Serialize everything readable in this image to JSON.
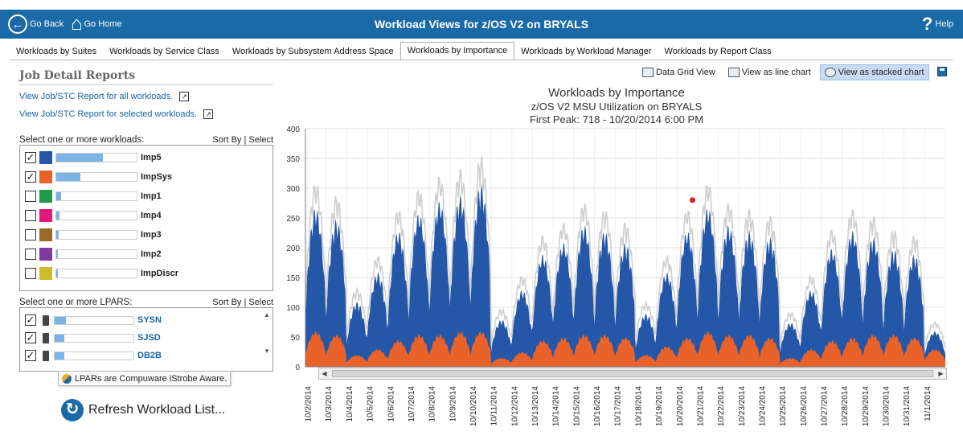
{
  "header": {
    "back_label": "Go Back",
    "home_label": "Go Home",
    "title": "Workload Views for z/OS V2 on BRYALS",
    "help_label": "Help"
  },
  "tabs": [
    {
      "label": "Workloads by Suites",
      "active": false
    },
    {
      "label": "Workloads by Service Class",
      "active": false
    },
    {
      "label": "Workloads by Subsystem Address Space",
      "active": false
    },
    {
      "label": "Workloads by Importance",
      "active": true
    },
    {
      "label": "Workloads by Workload Manager",
      "active": false
    },
    {
      "label": "Workloads by Report Class",
      "active": false
    }
  ],
  "left": {
    "title": "Job Detail Reports",
    "link_all": "View Job/STC Report for all workloads.",
    "link_selected": "View Job/STC Report for selected workloads.",
    "workloads_label": "Select one or more workloads:",
    "lpars_label": "Select one or more LPARS:",
    "sort_by": "Sort By",
    "select": "Select",
    "workloads": [
      {
        "name": "Imp5",
        "checked": true,
        "color": "#2457a8",
        "level": 0.58
      },
      {
        "name": "ImpSys",
        "checked": true,
        "color": "#e8622a",
        "level": 0.3
      },
      {
        "name": "Imp1",
        "checked": false,
        "color": "#1f9a4b",
        "level": 0.06
      },
      {
        "name": "Imp4",
        "checked": false,
        "color": "#e4197c",
        "level": 0.04
      },
      {
        "name": "Imp3",
        "checked": false,
        "color": "#9a6a2a",
        "level": 0.03
      },
      {
        "name": "Imp2",
        "checked": false,
        "color": "#7f3aa0",
        "level": 0.02
      },
      {
        "name": "ImpDiscr",
        "checked": false,
        "color": "#cdbb2d",
        "level": 0.02
      }
    ],
    "lpars": [
      {
        "name": "SYSN",
        "checked": true,
        "level": 0.14
      },
      {
        "name": "SJSD",
        "checked": true,
        "level": 0.12
      },
      {
        "name": "DB2B",
        "checked": true,
        "level": 0.12
      }
    ],
    "tooltip": "LPARs are Compuware iStrobe Aware.",
    "refresh_label": "Refresh Workload List..."
  },
  "toolbar": {
    "grid_label": "Data Grid View",
    "line_label": "View as line chart",
    "stacked_label": "View as stacked chart"
  },
  "chart_data": {
    "type": "area",
    "title": "Workloads by Importance",
    "subtitle": "z/OS V2 MSU Utilization on BRYALS",
    "peak_note": "First Peak: 718 - 10/20/2014 6:00 PM",
    "ylim": [
      0,
      400
    ],
    "yticks": [
      0,
      50,
      100,
      150,
      200,
      250,
      300,
      350,
      400
    ],
    "grid": true,
    "x_categories": [
      "10/2/2014",
      "10/3/2014",
      "10/4/2014",
      "10/5/2014",
      "10/6/2014",
      "10/7/2014",
      "10/8/2014",
      "10/9/2014",
      "10/10/2014",
      "10/11/2014",
      "10/12/2014",
      "10/13/2014",
      "10/14/2014",
      "10/15/2014",
      "10/16/2014",
      "10/17/2014",
      "10/18/2014",
      "10/19/2014",
      "10/20/2014",
      "10/21/2014",
      "10/22/2014",
      "10/23/2014",
      "10/24/2014",
      "10/25/2014",
      "10/26/2014",
      "10/27/2014",
      "10/28/2014",
      "10/29/2014",
      "10/30/2014",
      "10/31/2014",
      "11/1/2014"
    ],
    "peak_marker": {
      "date": "10/20/2014",
      "value": 280,
      "color": "#e81b1b"
    },
    "series": [
      {
        "name": "ImpSys",
        "color": "#e8622a",
        "daily_peak": [
          60,
          55,
          20,
          30,
          45,
          55,
          55,
          60,
          60,
          15,
          25,
          45,
          50,
          55,
          55,
          50,
          20,
          35,
          50,
          60,
          55,
          55,
          50,
          15,
          30,
          45,
          50,
          55,
          55,
          50,
          30
        ]
      },
      {
        "name": "Imp5",
        "color": "#2457a8",
        "daily_peak": [
          270,
          250,
          110,
          160,
          230,
          260,
          280,
          290,
          310,
          80,
          130,
          190,
          210,
          240,
          230,
          210,
          90,
          160,
          230,
          270,
          240,
          230,
          220,
          75,
          130,
          200,
          230,
          220,
          200,
          190,
          60
        ]
      }
    ]
  }
}
